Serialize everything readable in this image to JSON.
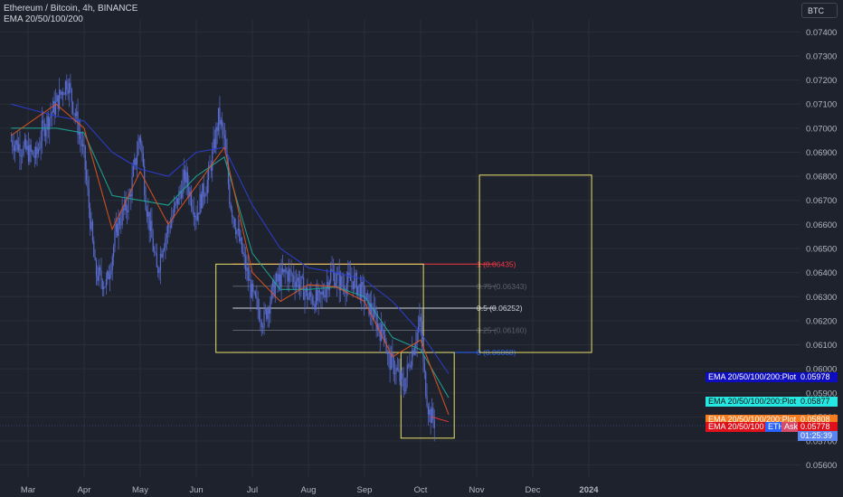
{
  "header": {
    "title": "Ethereum / Bitcoin, 4h, BINANCE",
    "indicator": "EMA 20/50/100/200"
  },
  "toolbar": {
    "currency_button": "BTC"
  },
  "colors": {
    "background": "#1e222d",
    "candle": "#5b6fd6",
    "ema20": "#e0531f",
    "ema50": "#1fa896",
    "ema100": "#2b3fd4",
    "box": "#e9e16a",
    "fib1": "#f23645"
  },
  "chart_data": {
    "type": "line",
    "title": "Ethereum / Bitcoin, 4h, BINANCE",
    "ylim": [
      0.0555,
      0.0745
    ],
    "y_ticks": [
      "0.07400",
      "0.07300",
      "0.07200",
      "0.07100",
      "0.07000",
      "0.06900",
      "0.06800",
      "0.06700",
      "0.06600",
      "0.06500",
      "0.06400",
      "0.06300",
      "0.06200",
      "0.06100",
      "0.06000",
      "0.05900",
      "0.05800",
      "0.05700",
      "0.05600"
    ],
    "x_ticks": [
      "Mar",
      "Apr",
      "May",
      "Jun",
      "Jul",
      "Aug",
      "Sep",
      "Oct",
      "Nov",
      "Dec",
      "2024"
    ],
    "price_x": [
      -0.3,
      0.0,
      0.15,
      0.25,
      0.5,
      0.7,
      0.85,
      1.0,
      1.2,
      1.4,
      1.6,
      1.8,
      2.0,
      2.1,
      2.3,
      2.4,
      2.6,
      2.8,
      3.0,
      3.1,
      3.2,
      3.3,
      3.4,
      3.5,
      3.6,
      3.8,
      4.0,
      4.2,
      4.4,
      4.6,
      4.8,
      5.0,
      5.2,
      5.4,
      5.6,
      5.8,
      6.0,
      6.2,
      6.3,
      6.35,
      6.4,
      6.55,
      6.7,
      6.8,
      6.9,
      7.0,
      7.05,
      7.15,
      7.25
    ],
    "price_y": [
      0.0695,
      0.069,
      0.0688,
      0.0699,
      0.071,
      0.072,
      0.0705,
      0.0688,
      0.064,
      0.0635,
      0.066,
      0.067,
      0.0698,
      0.067,
      0.064,
      0.0652,
      0.0665,
      0.068,
      0.0664,
      0.0672,
      0.0678,
      0.069,
      0.0705,
      0.0695,
      0.067,
      0.065,
      0.063,
      0.062,
      0.0635,
      0.064,
      0.0637,
      0.063,
      0.0628,
      0.064,
      0.0635,
      0.0637,
      0.063,
      0.062,
      0.0615,
      0.0618,
      0.0605,
      0.06,
      0.0592,
      0.0603,
      0.0612,
      0.062,
      0.06,
      0.0582,
      0.0578
    ],
    "series": [
      {
        "name": "EMA 20/50/100/200:Plot",
        "last_value": "0.05978",
        "x": [
          -0.3,
          0.5,
          1.0,
          1.5,
          2.0,
          2.5,
          3.0,
          3.5,
          4.0,
          4.5,
          5.0,
          5.5,
          6.0,
          6.5,
          7.0,
          7.5
        ],
        "y": [
          0.071,
          0.0705,
          0.0703,
          0.069,
          0.0683,
          0.068,
          0.069,
          0.0692,
          0.0668,
          0.065,
          0.0642,
          0.064,
          0.0637,
          0.0628,
          0.0615,
          0.0598
        ]
      },
      {
        "name": "EMA 20/50/100/200:Plot",
        "last_value": "0.05877",
        "x": [
          -0.3,
          0.5,
          1.0,
          1.5,
          2.0,
          2.5,
          3.0,
          3.5,
          4.0,
          4.5,
          5.0,
          5.5,
          6.0,
          6.5,
          7.0,
          7.5
        ],
        "y": [
          0.07,
          0.07,
          0.0698,
          0.0672,
          0.067,
          0.0668,
          0.068,
          0.0688,
          0.0648,
          0.0633,
          0.0633,
          0.0634,
          0.063,
          0.0613,
          0.0608,
          0.0588
        ]
      },
      {
        "name": "EMA 20/50/100/200:Plot",
        "last_value": "0.05808",
        "x": [
          -0.3,
          0.5,
          1.0,
          1.5,
          2.0,
          2.5,
          3.0,
          3.5,
          4.0,
          4.5,
          5.0,
          5.5,
          6.0,
          6.5,
          7.0,
          7.5
        ],
        "y": [
          0.0697,
          0.071,
          0.07,
          0.0658,
          0.0682,
          0.066,
          0.0676,
          0.0692,
          0.064,
          0.0628,
          0.0635,
          0.0634,
          0.0628,
          0.0605,
          0.0612,
          0.0581
        ]
      },
      {
        "name": "EMA 20/50/100/200",
        "last_value": "0.05778",
        "x": [
          7.2,
          7.5
        ],
        "y": [
          0.058,
          0.0578
        ]
      }
    ],
    "fib_levels": [
      {
        "label": "1 (0.06435)",
        "value": 0.06435,
        "color": "#f23645"
      },
      {
        "label": "0.75 (0.06343)",
        "value": 0.06343,
        "color": "#5d606b"
      },
      {
        "label": "0.5 (0.06252)",
        "value": 0.06252,
        "color": "#d1d4dc"
      },
      {
        "label": "0.25 (0.06160)",
        "value": 0.0616,
        "color": "#5d606b"
      },
      {
        "label": "0 (0.06068)",
        "value": 0.06068,
        "color": "#2962ff"
      }
    ],
    "boxes": [
      {
        "x0": 3.35,
        "x1": 7.05,
        "y0": 0.06068,
        "y1": 0.06435
      },
      {
        "x0": 6.65,
        "x1": 7.6,
        "y0": 0.05712,
        "y1": 0.06068
      },
      {
        "x0": 8.05,
        "x1": 10.05,
        "y0": 0.06068,
        "y1": 0.06805
      }
    ]
  },
  "price_tags": {
    "ema100": "EMA 20/50/100/200:Plot",
    "ema100_value": "0.05978",
    "ema50": "EMA 20/50/100/200:Plot",
    "ema50_value": "0.05877",
    "ema20": "EMA 20/50/100/200:Plot",
    "ema20_value": "0.05808",
    "ema_last": "EMA 20/50/100",
    "ema_last_value": "0.05778",
    "eth": "ETH",
    "ask": "Ask",
    "countdown": "01:25:39"
  }
}
